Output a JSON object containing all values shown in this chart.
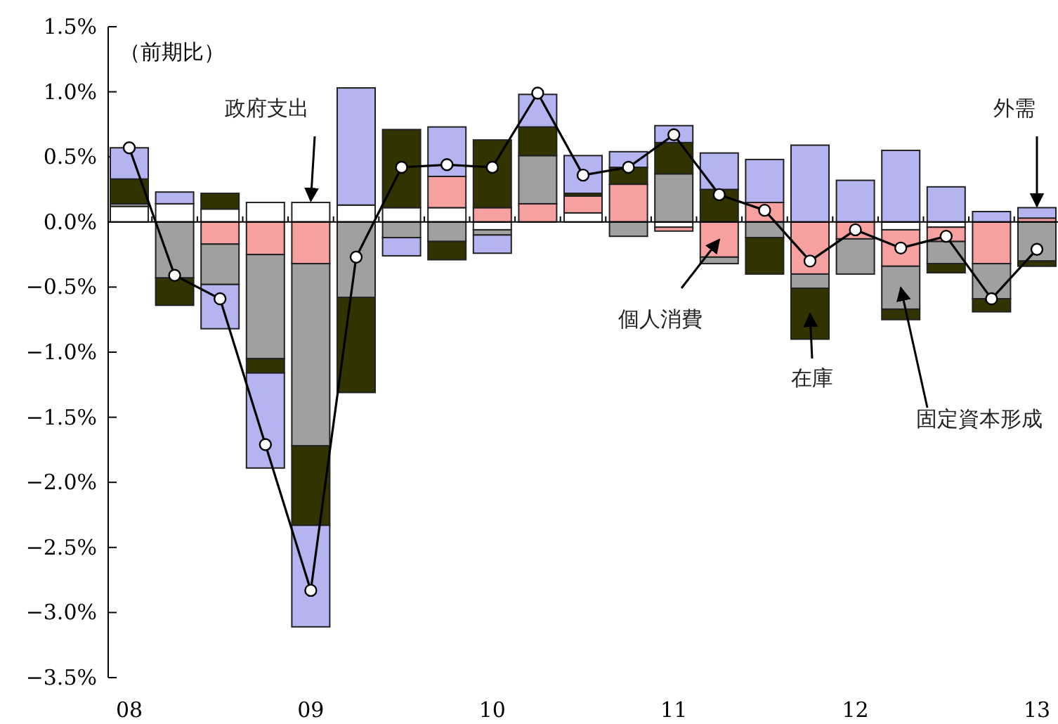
{
  "chart_data": {
    "type": "bar",
    "stacked": true,
    "categories": [
      "08",
      null,
      null,
      null,
      "09",
      null,
      null,
      null,
      "10",
      null,
      null,
      null,
      "11",
      null,
      null,
      null,
      "12",
      null,
      null,
      null,
      "13"
    ],
    "series": [
      {
        "name": "政府支出",
        "color": "#ffffff",
        "values": [
          0.12,
          0.14,
          0.1,
          0.15,
          0.15,
          0.13,
          0.11,
          0.11,
          -0.06,
          null,
          0.07,
          null,
          -0.04,
          0,
          0,
          0,
          0,
          -0.06,
          -0.04,
          0,
          0
        ]
      },
      {
        "name": "個人消費",
        "color": "#f7a0a0",
        "values": [
          0,
          0,
          -0.17,
          -0.25,
          -0.32,
          0,
          null,
          0.24,
          0.11,
          0.14,
          0.13,
          0.29,
          -0.03,
          -0.27,
          0.15,
          -0.4,
          -0.13,
          -0.28,
          -0.11,
          -0.32,
          0.03
        ]
      },
      {
        "name": "固定資本形成",
        "color": "#a0a0a0",
        "values": [
          0.02,
          -0.43,
          -0.31,
          -0.8,
          -1.4,
          -0.58,
          -0.12,
          -0.15,
          -0.04,
          0.37,
          0,
          -0.11,
          0.37,
          -0.05,
          -0.12,
          -0.11,
          -0.27,
          -0.33,
          -0.17,
          -0.27,
          -0.3
        ]
      },
      {
        "name": "在庫",
        "color": "#333300",
        "values": [
          0.19,
          -0.21,
          0.12,
          -0.11,
          -0.61,
          -0.73,
          0.6,
          -0.14,
          0.52,
          0.22,
          0.02,
          0.13,
          0.24,
          0.25,
          -0.28,
          -0.39,
          0,
          -0.08,
          -0.07,
          -0.1,
          -0.04
        ]
      },
      {
        "name": "外需",
        "color": "#b4b4f0",
        "values": [
          0.24,
          0.09,
          -0.34,
          -0.73,
          -0.78,
          0.9,
          -0.14,
          0.38,
          -0.14,
          0.25,
          0.29,
          0.12,
          0.13,
          0.28,
          0.33,
          0.59,
          0.32,
          0.55,
          0.27,
          0.08,
          0.08
        ]
      },
      {
        "type": "line",
        "color": "#000000",
        "marker": "circle",
        "values": [
          0.57,
          -0.41,
          -0.59,
          -1.71,
          -2.83,
          -0.27,
          0.42,
          0.44,
          0.42,
          0.99,
          0.36,
          0.42,
          0.67,
          0.21,
          0.09,
          -0.3,
          -0.06,
          -0.2,
          -0.11,
          -0.59,
          -0.21
        ]
      }
    ],
    "ylim": [
      -3.5,
      1.5
    ],
    "yticks": [
      {
        "value": 1.5,
        "label": "1.5%"
      },
      {
        "value": 1.0,
        "label": "1.0%"
      },
      {
        "value": 0.5,
        "label": "0.5%"
      },
      {
        "value": 0,
        "label": "0.0%"
      },
      {
        "value": -0.5,
        "label": "−0.5%"
      },
      {
        "value": -1.0,
        "label": "−1.0%"
      },
      {
        "value": -1.5,
        "label": "−1.5%"
      },
      {
        "value": -2.0,
        "label": "−2.0%"
      },
      {
        "value": -2.5,
        "label": "−2.5%"
      },
      {
        "value": -3.0,
        "label": "−3.0%"
      },
      {
        "value": -3.5,
        "label": "−3.5%"
      }
    ],
    "annotations": [
      "（前期比）"
    ]
  }
}
